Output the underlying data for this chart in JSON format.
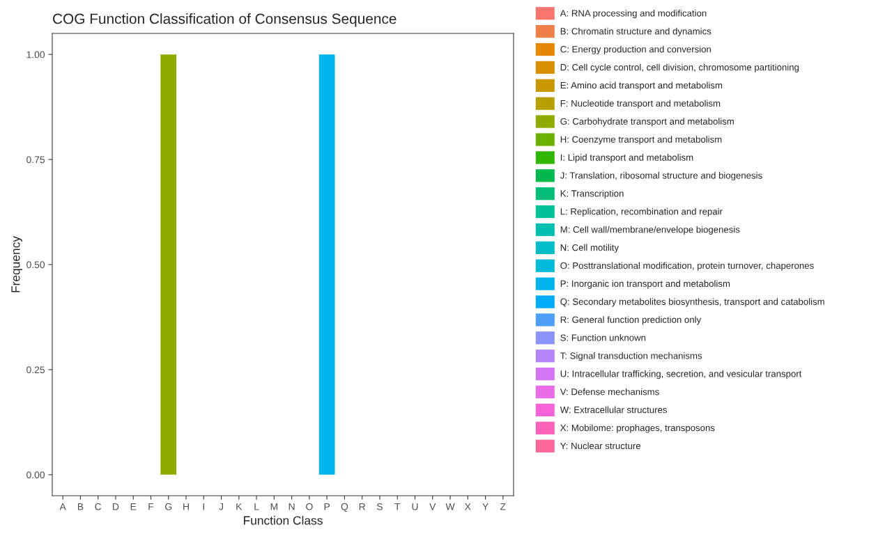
{
  "chart_data": {
    "type": "bar",
    "title": "COG Function Classification of Consensus Sequence",
    "xlabel": "Function Class",
    "ylabel": "Frequency",
    "categories": [
      "A",
      "B",
      "C",
      "D",
      "E",
      "F",
      "G",
      "H",
      "I",
      "J",
      "K",
      "L",
      "M",
      "N",
      "O",
      "P",
      "Q",
      "R",
      "S",
      "T",
      "U",
      "V",
      "W",
      "X",
      "Y",
      "Z"
    ],
    "ylim": [
      -0.05,
      1.05
    ],
    "yticks": [
      {
        "value": 0,
        "label": "0.00"
      },
      {
        "value": 0.25,
        "label": "0.25"
      },
      {
        "value": 0.5,
        "label": "0.50"
      },
      {
        "value": 0.75,
        "label": "0.75"
      },
      {
        "value": 1,
        "label": "1.00"
      }
    ],
    "grid": false,
    "legend": "right",
    "series": [
      {
        "name": "A: RNA processing and modification",
        "color": "#f8766d",
        "values": [
          0,
          null,
          null,
          null,
          null,
          null,
          null,
          null,
          null,
          null,
          null,
          null,
          null,
          null,
          null,
          null,
          null,
          null,
          null,
          null,
          null,
          null,
          null,
          null,
          null,
          null
        ]
      },
      {
        "name": "B: Chromatin structure and dynamics",
        "color": "#ef7f49",
        "values": [
          null,
          0,
          null,
          null,
          null,
          null,
          null,
          null,
          null,
          null,
          null,
          null,
          null,
          null,
          null,
          null,
          null,
          null,
          null,
          null,
          null,
          null,
          null,
          null,
          null,
          null
        ]
      },
      {
        "name": "C: Energy production and conversion",
        "color": "#e58700",
        "values": [
          null,
          null,
          0,
          null,
          null,
          null,
          null,
          null,
          null,
          null,
          null,
          null,
          null,
          null,
          null,
          null,
          null,
          null,
          null,
          null,
          null,
          null,
          null,
          null,
          null,
          null
        ]
      },
      {
        "name": "D: Cell cycle control, cell division, chromosome partitioning",
        "color": "#d89000",
        "values": [
          null,
          null,
          null,
          0,
          null,
          null,
          null,
          null,
          null,
          null,
          null,
          null,
          null,
          null,
          null,
          null,
          null,
          null,
          null,
          null,
          null,
          null,
          null,
          null,
          null,
          null
        ]
      },
      {
        "name": "E: Amino acid transport and metabolism",
        "color": "#c99800",
        "values": [
          null,
          null,
          null,
          null,
          0,
          null,
          null,
          null,
          null,
          null,
          null,
          null,
          null,
          null,
          null,
          null,
          null,
          null,
          null,
          null,
          null,
          null,
          null,
          null,
          null,
          null
        ]
      },
      {
        "name": "F: Nucleotide transport and metabolism",
        "color": "#b79f00",
        "values": [
          null,
          null,
          null,
          null,
          null,
          0,
          null,
          null,
          null,
          null,
          null,
          null,
          null,
          null,
          null,
          null,
          null,
          null,
          null,
          null,
          null,
          null,
          null,
          null,
          null,
          null
        ]
      },
      {
        "name": "G: Carbohydrate transport and metabolism",
        "color": "#8fab00",
        "values": [
          null,
          null,
          null,
          null,
          null,
          null,
          1,
          null,
          null,
          null,
          null,
          null,
          null,
          null,
          null,
          null,
          null,
          null,
          null,
          null,
          null,
          null,
          null,
          null,
          null,
          null
        ]
      },
      {
        "name": "H: Coenzyme transport and metabolism",
        "color": "#6bb100",
        "values": [
          null,
          null,
          null,
          null,
          null,
          null,
          null,
          0,
          null,
          null,
          null,
          null,
          null,
          null,
          null,
          null,
          null,
          null,
          null,
          null,
          null,
          null,
          null,
          null,
          null,
          null
        ]
      },
      {
        "name": "I: Lipid transport and metabolism",
        "color": "#2fb600",
        "values": [
          null,
          null,
          null,
          null,
          null,
          null,
          null,
          null,
          0,
          null,
          null,
          null,
          null,
          null,
          null,
          null,
          null,
          null,
          null,
          null,
          null,
          null,
          null,
          null,
          null,
          null
        ]
      },
      {
        "name": "J: Translation, ribosomal structure and biogenesis",
        "color": "#00b84e",
        "values": [
          null,
          null,
          null,
          null,
          null,
          null,
          null,
          null,
          null,
          0,
          null,
          null,
          null,
          null,
          null,
          null,
          null,
          null,
          null,
          null,
          null,
          null,
          null,
          null,
          null,
          null
        ]
      },
      {
        "name": "K: Transcription",
        "color": "#00bd76",
        "values": [
          null,
          null,
          null,
          null,
          null,
          null,
          null,
          null,
          null,
          null,
          0,
          null,
          null,
          null,
          null,
          null,
          null,
          null,
          null,
          null,
          null,
          null,
          null,
          null,
          null,
          null
        ]
      },
      {
        "name": "L: Replication, recombination and repair",
        "color": "#00c097",
        "values": [
          null,
          null,
          null,
          null,
          null,
          null,
          null,
          null,
          null,
          null,
          null,
          0,
          null,
          null,
          null,
          null,
          null,
          null,
          null,
          null,
          null,
          null,
          null,
          null,
          null,
          null
        ]
      },
      {
        "name": "M: Cell wall/membrane/envelope biogenesis",
        "color": "#00c0b2",
        "values": [
          null,
          null,
          null,
          null,
          null,
          null,
          null,
          null,
          null,
          null,
          null,
          null,
          0,
          null,
          null,
          null,
          null,
          null,
          null,
          null,
          null,
          null,
          null,
          null,
          null,
          null
        ]
      },
      {
        "name": "N: Cell motility",
        "color": "#00bdc8",
        "values": [
          null,
          null,
          null,
          null,
          null,
          null,
          null,
          null,
          null,
          null,
          null,
          null,
          null,
          0,
          null,
          null,
          null,
          null,
          null,
          null,
          null,
          null,
          null,
          null,
          null,
          null
        ]
      },
      {
        "name": "O: Posttranslational modification, protein turnover, chaperones",
        "color": "#00bada",
        "values": [
          null,
          null,
          null,
          null,
          null,
          null,
          null,
          null,
          null,
          null,
          null,
          null,
          null,
          null,
          0,
          null,
          null,
          null,
          null,
          null,
          null,
          null,
          null,
          null,
          null,
          null
        ]
      },
      {
        "name": "P: Inorganic ion transport and metabolism",
        "color": "#00b5ec",
        "values": [
          null,
          null,
          null,
          null,
          null,
          null,
          null,
          null,
          null,
          null,
          null,
          null,
          null,
          null,
          null,
          1,
          null,
          null,
          null,
          null,
          null,
          null,
          null,
          null,
          null,
          null
        ]
      },
      {
        "name": "Q: Secondary metabolites biosynthesis, transport and catabolism",
        "color": "#00abfb",
        "values": [
          null,
          null,
          null,
          null,
          null,
          null,
          null,
          null,
          null,
          null,
          null,
          null,
          null,
          null,
          null,
          null,
          0,
          null,
          null,
          null,
          null,
          null,
          null,
          null,
          null,
          null
        ]
      },
      {
        "name": "R: General function prediction only",
        "color": "#4d9ff8",
        "values": [
          null,
          null,
          null,
          null,
          null,
          null,
          null,
          null,
          null,
          null,
          null,
          null,
          null,
          null,
          null,
          null,
          null,
          0,
          null,
          null,
          null,
          null,
          null,
          null,
          null,
          null
        ]
      },
      {
        "name": "S: Function unknown",
        "color": "#8b93f8",
        "values": [
          null,
          null,
          null,
          null,
          null,
          null,
          null,
          null,
          null,
          null,
          null,
          null,
          null,
          null,
          null,
          null,
          null,
          null,
          0,
          null,
          null,
          null,
          null,
          null,
          null,
          null
        ]
      },
      {
        "name": "T: Signal transduction mechanisms",
        "color": "#b584fb",
        "values": [
          null,
          null,
          null,
          null,
          null,
          null,
          null,
          null,
          null,
          null,
          null,
          null,
          null,
          null,
          null,
          null,
          null,
          null,
          null,
          0,
          null,
          null,
          null,
          null,
          null,
          null
        ]
      },
      {
        "name": "U: Intracellular trafficking, secretion, and vesicular transport",
        "color": "#d475f3",
        "values": [
          null,
          null,
          null,
          null,
          null,
          null,
          null,
          null,
          null,
          null,
          null,
          null,
          null,
          null,
          null,
          null,
          null,
          null,
          null,
          null,
          0,
          null,
          null,
          null,
          null,
          null
        ]
      },
      {
        "name": "V: Defense mechanisms",
        "color": "#e96be8",
        "values": [
          null,
          null,
          null,
          null,
          null,
          null,
          null,
          null,
          null,
          null,
          null,
          null,
          null,
          null,
          null,
          null,
          null,
          null,
          null,
          null,
          null,
          0,
          null,
          null,
          null,
          null
        ]
      },
      {
        "name": "W: Extracellular structures",
        "color": "#f663d6",
        "values": [
          null,
          null,
          null,
          null,
          null,
          null,
          null,
          null,
          null,
          null,
          null,
          null,
          null,
          null,
          null,
          null,
          null,
          null,
          null,
          null,
          null,
          null,
          0,
          null,
          null,
          null
        ]
      },
      {
        "name": "X: Mobilome: prophages, transposons",
        "color": "#fc63b8",
        "values": [
          null,
          null,
          null,
          null,
          null,
          null,
          null,
          null,
          null,
          null,
          null,
          null,
          null,
          null,
          null,
          null,
          null,
          null,
          null,
          null,
          null,
          null,
          null,
          0,
          null,
          null
        ]
      },
      {
        "name": "Y: Nuclear structure",
        "color": "#fd6799",
        "values": [
          null,
          null,
          null,
          null,
          null,
          null,
          null,
          null,
          null,
          null,
          null,
          null,
          null,
          null,
          null,
          null,
          null,
          null,
          null,
          null,
          null,
          null,
          null,
          null,
          0,
          null
        ]
      },
      {
        "color": "#f8766d",
        "values": [
          null,
          null,
          null,
          null,
          null,
          null,
          null,
          null,
          null,
          null,
          null,
          null,
          null,
          null,
          null,
          null,
          null,
          null,
          null,
          null,
          null,
          null,
          null,
          null,
          null,
          0
        ]
      }
    ]
  }
}
